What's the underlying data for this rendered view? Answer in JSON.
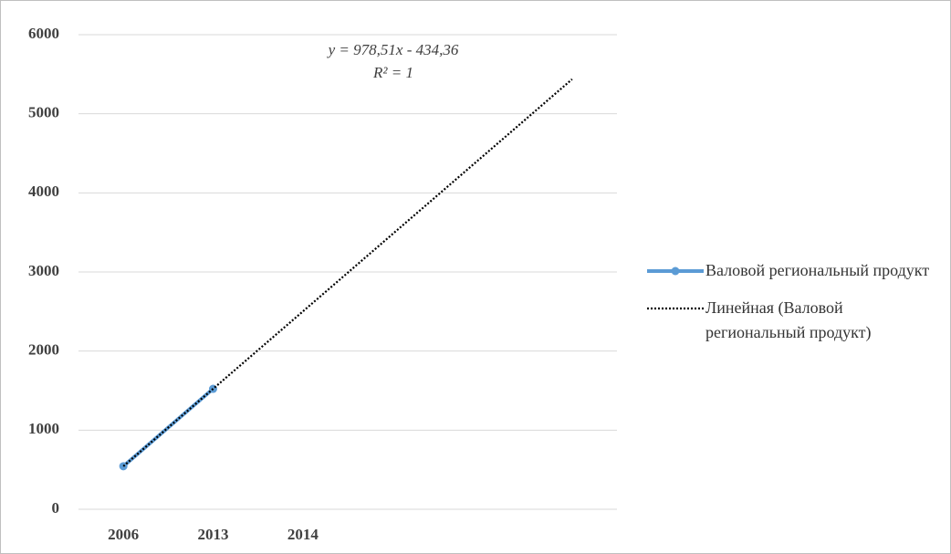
{
  "chart_data": {
    "type": "line",
    "categories": [
      "2006",
      "2013",
      "2014",
      null,
      null,
      null
    ],
    "series": [
      {
        "name": "Валовой региональный продукт",
        "color": "#5b9bd5",
        "values": [
          544,
          1523,
          null,
          null,
          null,
          null
        ],
        "style": "solid",
        "markers": true
      },
      {
        "name": "Линейная (Валовой региональный продукт)",
        "color": "#000000",
        "values": [
          544,
          1523,
          2501,
          3480,
          4458,
          5437
        ],
        "style": "dotted",
        "markers": false
      }
    ],
    "annotations": [
      "y = 978,51x - 434,36",
      "R² = 1"
    ],
    "ylim": [
      0,
      6000
    ],
    "yticks": [
      0,
      1000,
      2000,
      3000,
      4000,
      5000,
      6000
    ],
    "grid": true,
    "legend": "right"
  }
}
